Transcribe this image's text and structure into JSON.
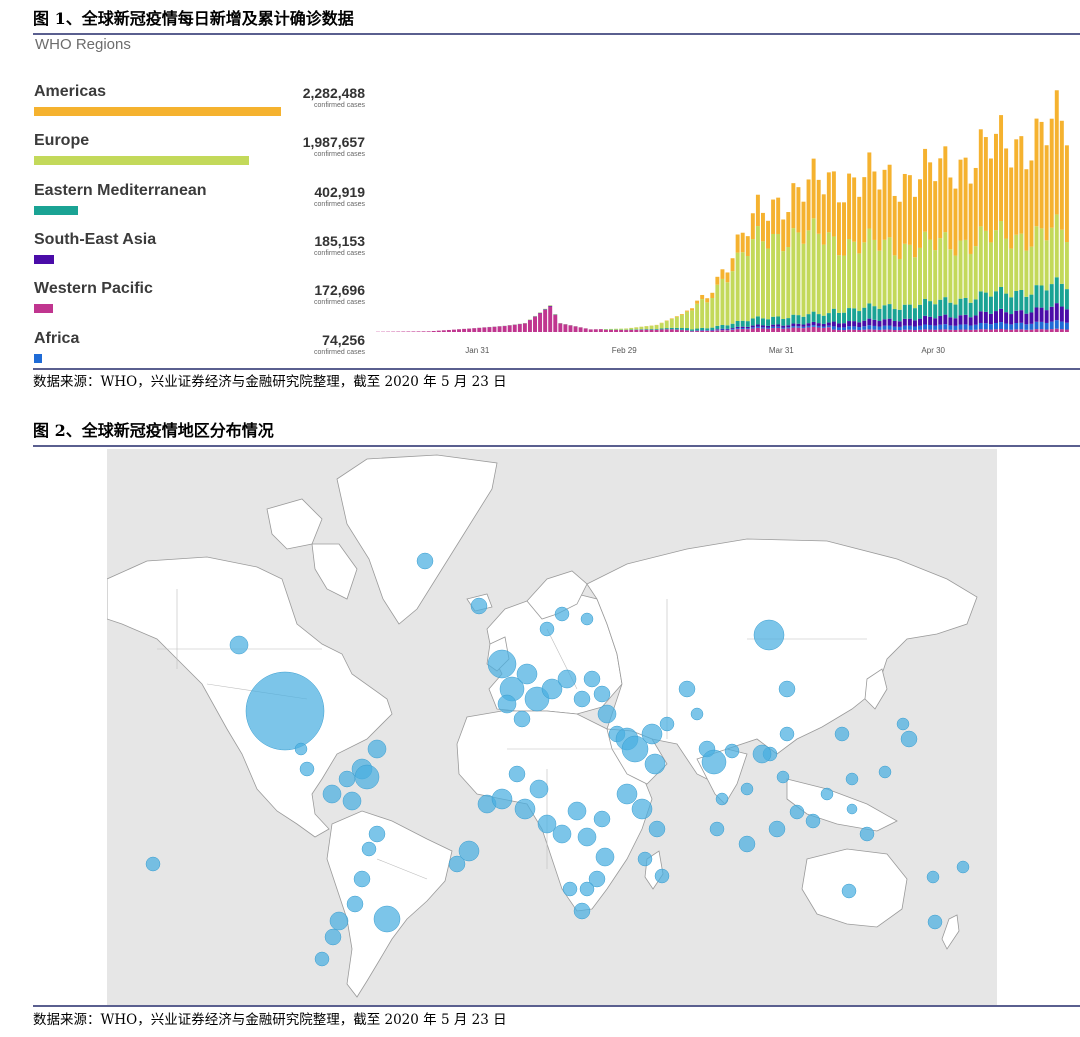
{
  "figure1": {
    "title": "图 1、全球新冠疫情每日新增及累计确诊数据",
    "header": "WHO Regions",
    "unit_label": "confirmed cases",
    "source": "数据来源：WHO，兴业证券经济与金融研究院整理，截至 2020 年 5 月 23 日"
  },
  "regions": [
    {
      "name": "Americas",
      "value": "2,282,488",
      "color": "#f5b22f",
      "share": 1.0
    },
    {
      "name": "Europe",
      "value": "1,987,657",
      "color": "#c3d95a",
      "share": 0.87
    },
    {
      "name": "Eastern Mediterranean",
      "value": "402,919",
      "color": "#1aa394",
      "share": 0.18
    },
    {
      "name": "South-East Asia",
      "value": "185,153",
      "color": "#4a0ca8",
      "share": 0.08
    },
    {
      "name": "Western Pacific",
      "value": "172,696",
      "color": "#c0358f",
      "share": 0.075
    },
    {
      "name": "Africa",
      "value": "74,256",
      "color": "#1f6bd6",
      "share": 0.032
    }
  ],
  "chart_data": {
    "type": "bar",
    "stacked": true,
    "title": "全球新冠疫情每日新增及累计确诊数据",
    "x_tick_labels": [
      "Jan 31",
      "Feb 29",
      "Mar 31",
      "Apr 30"
    ],
    "x_tick_day_index": [
      20,
      49,
      80,
      110
    ],
    "day_count": 137,
    "x_start": "2020-01-11",
    "ylim": [
      0,
      130000
    ],
    "stack_order": [
      "Western Pacific",
      "Africa",
      "South-East Asia",
      "Eastern Mediterranean",
      "Europe",
      "Americas"
    ],
    "series_colors": {
      "Americas": "#f5b22f",
      "Europe": "#c3d95a",
      "Eastern Mediterranean": "#1aa394",
      "South-East Asia": "#4a0ca8",
      "Western Pacific": "#c0358f",
      "Africa": "#1f6bd6"
    },
    "daily_total_estimate": [
      {
        "day": 0,
        "value": 150
      },
      {
        "day": 10,
        "value": 400
      },
      {
        "day": 18,
        "value": 2000
      },
      {
        "day": 25,
        "value": 3500
      },
      {
        "day": 29,
        "value": 5000
      },
      {
        "day": 34,
        "value": 15000
      },
      {
        "day": 36,
        "value": 5000
      },
      {
        "day": 42,
        "value": 1500
      },
      {
        "day": 49,
        "value": 2000
      },
      {
        "day": 55,
        "value": 4000
      },
      {
        "day": 60,
        "value": 10000
      },
      {
        "day": 65,
        "value": 20000
      },
      {
        "day": 70,
        "value": 45000
      },
      {
        "day": 75,
        "value": 65000
      },
      {
        "day": 80,
        "value": 75000
      },
      {
        "day": 90,
        "value": 85000
      },
      {
        "day": 100,
        "value": 83000
      },
      {
        "day": 110,
        "value": 85000
      },
      {
        "day": 120,
        "value": 95000
      },
      {
        "day": 130,
        "value": 100000
      },
      {
        "day": 136,
        "value": 105000
      }
    ]
  },
  "figure2": {
    "title": "图 2、全球新冠疫情地区分布情况",
    "source": "数据来源：WHO，兴业证券经济与金融研究院整理，截至 2020 年 5 月 23 日"
  },
  "map_colors": {
    "ocean": "#e6e6e6",
    "land": "#ffffff",
    "border": "#9a9a9a",
    "bubble": "#4aaee0"
  }
}
